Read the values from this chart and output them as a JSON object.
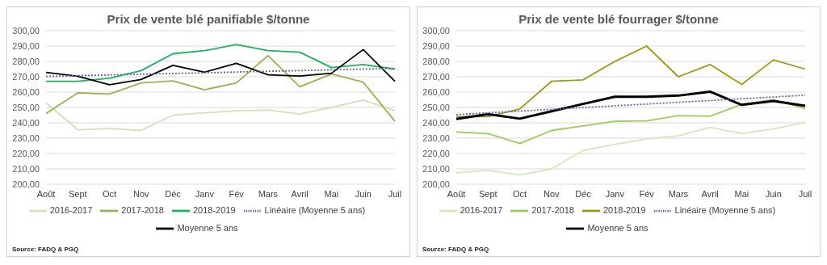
{
  "chart_data": [
    {
      "type": "line",
      "title": "Prix de vente blé panifiable $/tonne",
      "categories": [
        "Août",
        "Sept",
        "Oct",
        "Nov",
        "Déc",
        "Janv",
        "Fév",
        "Mars",
        "Avril",
        "Mai",
        "Juin",
        "Juil"
      ],
      "series": [
        {
          "name": "2016-2017",
          "color": "#d3e2b6",
          "values": [
            253,
            235.5,
            236.3,
            235,
            245,
            246.5,
            247.8,
            248.3,
            245.7,
            250,
            254.8,
            248
          ]
        },
        {
          "name": "2017-2018",
          "color": "#92b550",
          "values": [
            246,
            259.5,
            258.7,
            266,
            267.3,
            261.5,
            266,
            283.8,
            263.5,
            271.8,
            266.5,
            241
          ]
        },
        {
          "name": "2018-2019",
          "color": "#1db35a",
          "values": [
            267,
            267,
            269,
            274,
            285,
            287,
            291,
            287,
            286,
            276,
            278,
            275
          ]
        },
        {
          "name": "Moyenne 5 ans",
          "color": "#000000",
          "values": [
            272.8,
            270.3,
            264.8,
            268.2,
            277.4,
            273,
            278.8,
            271.3,
            270.5,
            272.3,
            287.7,
            267
          ]
        },
        {
          "name": "Linéaire (Moyenne 5 ans)",
          "color": "#7060a8",
          "line_style": "dotted",
          "values": [
            270.2,
            270.7,
            271.2,
            271.6,
            272.1,
            272.6,
            273.1,
            273.6,
            274.0,
            274.5,
            275.0,
            275.5
          ]
        }
      ],
      "ylim": [
        200,
        300
      ],
      "yticks": [
        {
          "value": 200,
          "label": "200,00"
        },
        {
          "value": 210,
          "label": "210,00"
        },
        {
          "value": 220,
          "label": "220,00"
        },
        {
          "value": 230,
          "label": "230,00"
        },
        {
          "value": 240,
          "label": "240,00"
        },
        {
          "value": 250,
          "label": "250,00"
        },
        {
          "value": 260,
          "label": "260,00"
        },
        {
          "value": 270,
          "label": "270,00"
        },
        {
          "value": 280,
          "label": "280,00"
        },
        {
          "value": 290,
          "label": "290,00"
        },
        {
          "value": 300,
          "label": "300,00"
        }
      ],
      "grid": "y",
      "legend": "bottom",
      "marker": "none",
      "line_style": "solid",
      "annotations": [
        "Source: FADQ & PGQ"
      ]
    },
    {
      "type": "line",
      "title": "Prix de vente blé fourrager $/tonne",
      "categories": [
        "Août",
        "Sept",
        "Oct",
        "Nov",
        "Déc",
        "Janv",
        "Fév",
        "Mars",
        "Avril",
        "Mai",
        "Juin",
        "Juil"
      ],
      "series": [
        {
          "name": "2016-2017",
          "color": "#d5e6bc",
          "values": [
            207.5,
            209,
            206,
            210,
            222,
            226,
            229.5,
            231.5,
            237,
            233,
            236,
            240.3
          ]
        },
        {
          "name": "2017-2018",
          "color": "#9ccc55",
          "values": [
            234,
            233,
            226.5,
            235,
            238,
            241,
            241.3,
            244.7,
            244.3,
            252,
            255,
            249.3
          ]
        },
        {
          "name": "2018-2019",
          "color": "#9a9a10",
          "values": [
            244,
            244,
            249,
            267,
            268,
            280,
            290,
            270,
            278,
            265,
            281,
            275
          ]
        },
        {
          "name": "Moyenne 5 ans",
          "color": "#000000",
          "values": [
            242.5,
            245.7,
            242.7,
            247.5,
            252.3,
            257,
            257,
            257.7,
            260.3,
            251.7,
            254.2,
            251
          ]
        },
        {
          "name": "Linéaire (Moyenne 5 ans)",
          "color": "#7060a8",
          "line_style": "dotted",
          "values": [
            245.3,
            246.5,
            247.6,
            248.8,
            249.9,
            251.1,
            252.2,
            253.4,
            254.5,
            255.7,
            256.8,
            258.0
          ]
        }
      ],
      "ylim": [
        200,
        300
      ],
      "yticks": [
        {
          "value": 200,
          "label": "200,00"
        },
        {
          "value": 210,
          "label": "210,00"
        },
        {
          "value": 220,
          "label": "220,00"
        },
        {
          "value": 230,
          "label": "230,00"
        },
        {
          "value": 240,
          "label": "240,00"
        },
        {
          "value": 250,
          "label": "250,00"
        },
        {
          "value": 260,
          "label": "260,00"
        },
        {
          "value": 270,
          "label": "270,00"
        },
        {
          "value": 280,
          "label": "280,00"
        },
        {
          "value": 290,
          "label": "290,00"
        },
        {
          "value": 300,
          "label": "300,00"
        }
      ],
      "grid": "y",
      "legend": "bottom",
      "marker": "none",
      "line_style": "solid",
      "annotations": [
        "Source: FADQ & PGQ"
      ]
    }
  ]
}
